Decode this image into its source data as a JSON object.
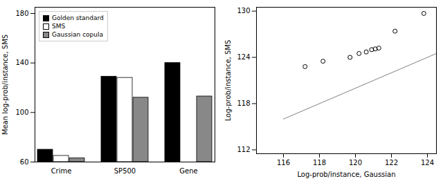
{
  "chart_data": [
    {
      "type": "bar",
      "categories": [
        "Crime",
        "SP500",
        "Gene"
      ],
      "series": [
        {
          "name": "Golden standard",
          "color": "black",
          "values": [
            70,
            129,
            140
          ]
        },
        {
          "name": "SMS",
          "color": "white",
          "values": [
            65,
            128,
            null
          ]
        },
        {
          "name": "Gaussian copula",
          "color": "#888888",
          "values": [
            63,
            112,
            113
          ]
        }
      ],
      "ylabel": "Mean log-prob/instance, SMS",
      "ylim": [
        60,
        185
      ],
      "yticks": [
        60,
        100,
        140,
        180
      ],
      "legend": "upper left"
    },
    {
      "type": "scatter",
      "xlabel": "Log-prob/instance, Gaussian",
      "ylabel": "Log-prob/instance, SMS",
      "series": [
        {
          "type": "scatter",
          "color": "black",
          "marker": "circle",
          "x": [
            117.2,
            118.2,
            119.7,
            120.2,
            120.6,
            120.9,
            121.1,
            121.3,
            122.2,
            123.8
          ],
          "values": [
            122.8,
            123.5,
            124.0,
            124.5,
            124.7,
            125.0,
            125.1,
            125.2,
            127.4,
            129.7
          ]
        },
        {
          "type": "line",
          "color": "gray",
          "x": [
            116.0,
            124.5
          ],
          "values": [
            116.0,
            124.5
          ]
        }
      ],
      "xlim": [
        114.5,
        124.5
      ],
      "xticks": [
        116,
        118,
        120,
        122,
        124
      ],
      "ylim": [
        111.5,
        130.5
      ],
      "yticks": [
        112,
        118,
        124,
        130
      ]
    }
  ]
}
